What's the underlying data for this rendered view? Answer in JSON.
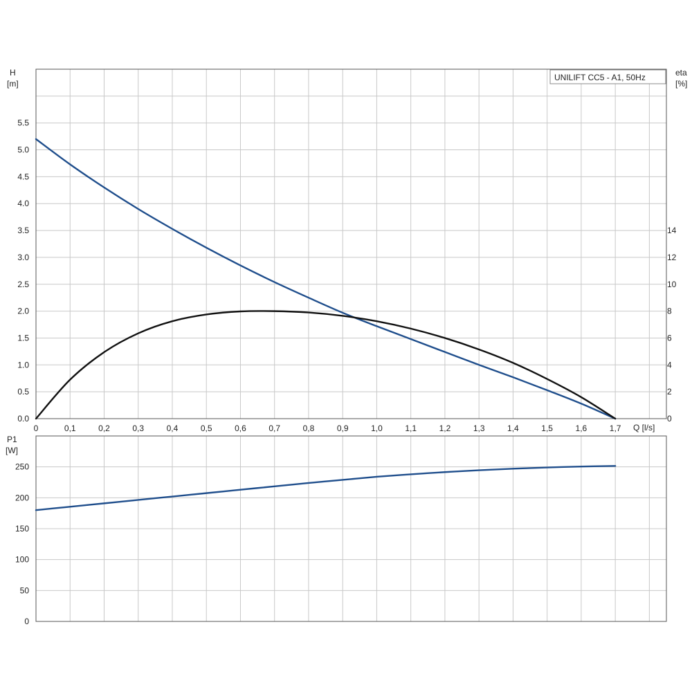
{
  "colors": {
    "head_curve": "#1f4e8c",
    "eta_curve": "#111111",
    "power_curve": "#1f4e8c",
    "grid": "#c8c8c8",
    "frame": "#555555"
  },
  "chart_data": [
    {
      "type": "line",
      "panel": "top",
      "title": "UNILIFT CC5 - A1, 50Hz",
      "title_placement": "top-right",
      "ylabel": "H",
      "ylabel_unit": "[m]",
      "y2label": "eta",
      "y2label_unit": "[%]",
      "xlabel": "Q [l/s]",
      "xlim": [
        0,
        1.85
      ],
      "ylim": [
        0,
        6.5
      ],
      "y2lim": [
        0,
        26
      ],
      "grid": true,
      "x_ticks": [
        "0",
        "0,1",
        "0,2",
        "0,3",
        "0,4",
        "0,5",
        "0,6",
        "0,7",
        "0,8",
        "0,9",
        "1,0",
        "1,1",
        "1,2",
        "1,3",
        "1,4",
        "1,5",
        "1,6",
        "1,7"
      ],
      "y_ticks": [
        "0.0",
        "0.5",
        "1.0",
        "1.5",
        "2.0",
        "2.5",
        "3.0",
        "3.5",
        "4.0",
        "4.5",
        "5.0",
        "5.5"
      ],
      "y2_ticks": [
        "0",
        "2",
        "4",
        "6",
        "8",
        "10",
        "12",
        "14"
      ],
      "series": [
        {
          "axis": "left",
          "color_key": "head_curve",
          "x": [
            0,
            0.1,
            0.2,
            0.3,
            0.4,
            0.5,
            0.6,
            0.7,
            0.8,
            0.9,
            1.0,
            1.1,
            1.2,
            1.3,
            1.4,
            1.5,
            1.6,
            1.7
          ],
          "y": [
            5.2,
            4.73,
            4.3,
            3.9,
            3.53,
            3.18,
            2.85,
            2.54,
            2.25,
            1.97,
            1.72,
            1.48,
            1.24,
            1.0,
            0.77,
            0.53,
            0.28,
            0.0
          ]
        },
        {
          "axis": "right",
          "color_key": "eta_curve",
          "x": [
            0,
            0.1,
            0.2,
            0.3,
            0.4,
            0.5,
            0.6,
            0.7,
            0.8,
            0.9,
            1.0,
            1.1,
            1.2,
            1.3,
            1.4,
            1.5,
            1.6,
            1.7
          ],
          "y": [
            0,
            2.9,
            4.95,
            6.35,
            7.25,
            7.75,
            7.98,
            8.0,
            7.9,
            7.65,
            7.25,
            6.7,
            6.0,
            5.15,
            4.15,
            2.95,
            1.6,
            0.0
          ]
        }
      ]
    },
    {
      "type": "line",
      "panel": "bottom",
      "ylabel": "P1",
      "ylabel_unit": "[W]",
      "xlim": [
        0,
        1.85
      ],
      "ylim": [
        0,
        300
      ],
      "grid": true,
      "y_ticks": [
        "0",
        "50",
        "100",
        "150",
        "200",
        "250"
      ],
      "series": [
        {
          "axis": "left",
          "color_key": "power_curve",
          "x": [
            0,
            0.1,
            0.2,
            0.3,
            0.4,
            0.5,
            0.6,
            0.7,
            0.8,
            0.9,
            1.0,
            1.1,
            1.2,
            1.3,
            1.4,
            1.5,
            1.6,
            1.7
          ],
          "y": [
            180,
            185.5,
            191,
            196.5,
            202,
            207.5,
            213,
            218.5,
            224,
            229,
            234,
            238,
            241.5,
            244.5,
            247,
            249,
            250.5,
            251.5
          ]
        }
      ]
    }
  ]
}
